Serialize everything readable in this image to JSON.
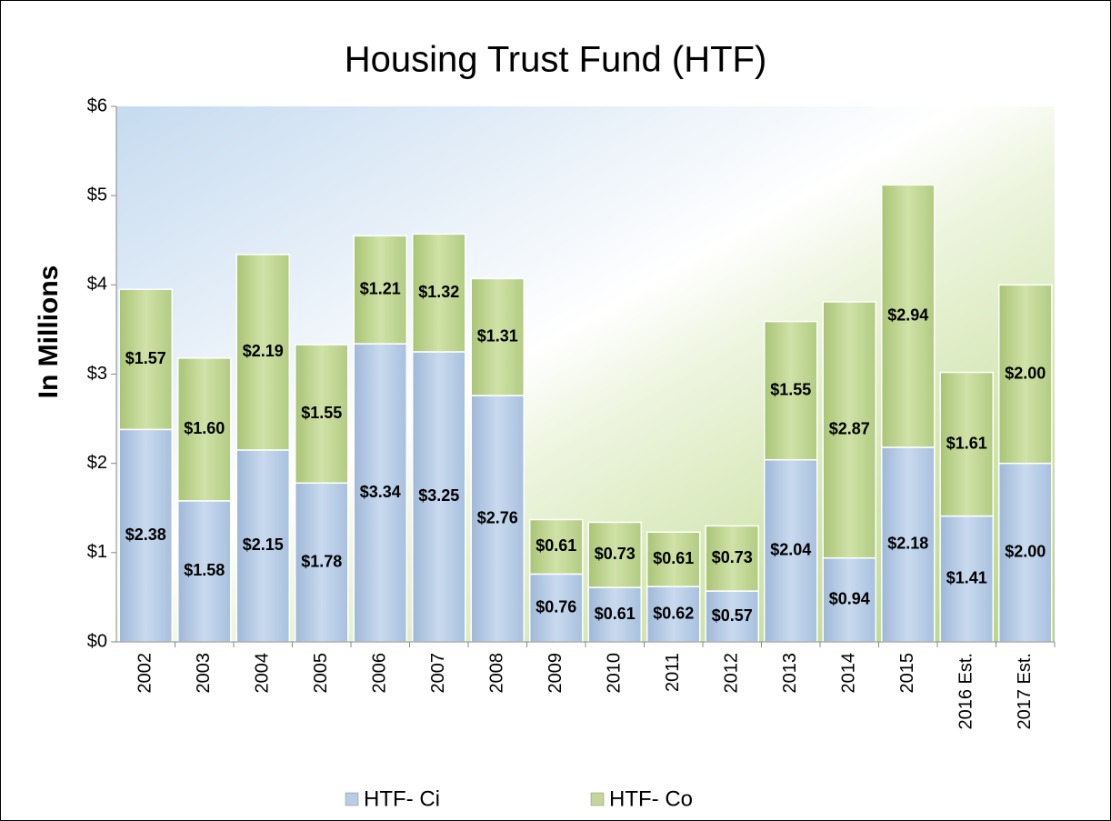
{
  "chart_data": {
    "type": "stacked_bar",
    "title": "Housing Trust Fund (HTF)",
    "y_label": "In Millions",
    "categories": [
      "2002",
      "2003",
      "2004",
      "2005",
      "2006",
      "2007",
      "2008",
      "2009",
      "2010",
      "2011",
      "2012",
      "2013",
      "2014",
      "2015",
      "2016 Est.",
      "2017 Est."
    ],
    "series": [
      {
        "name": "HTF- Ci",
        "color": "#b8cce4",
        "values": [
          2.38,
          1.58,
          2.15,
          1.78,
          3.34,
          3.25,
          2.76,
          0.76,
          0.61,
          0.62,
          0.57,
          2.04,
          0.94,
          2.18,
          1.41,
          2.0
        ],
        "value_labels": [
          "$2.38",
          "$1.58",
          "$2.15",
          "$1.78",
          "$3.34",
          "$3.25",
          "$2.76",
          "$0.76",
          "$0.61",
          "$0.62",
          "$0.57",
          "$2.04",
          "$0.94",
          "$2.18",
          "$1.41",
          "$2.00"
        ]
      },
      {
        "name": "HTF- Co",
        "color": "#c3d69b",
        "values": [
          1.57,
          1.6,
          2.19,
          1.55,
          1.21,
          1.32,
          1.31,
          0.61,
          0.73,
          0.61,
          0.73,
          1.55,
          2.87,
          2.94,
          1.61,
          2.0
        ],
        "value_labels": [
          "$1.57",
          "$1.60",
          "$2.19",
          "$1.55",
          "$1.21",
          "$1.32",
          "$1.31",
          "$0.61",
          "$0.73",
          "$0.61",
          "$0.73",
          "$1.55",
          "$2.87",
          "$2.94",
          "$1.61",
          "$2.00"
        ]
      }
    ],
    "ylim": [
      0,
      6
    ],
    "yticks": [
      {
        "value": 0,
        "label": "$0"
      },
      {
        "value": 1,
        "label": "$1"
      },
      {
        "value": 2,
        "label": "$2"
      },
      {
        "value": 3,
        "label": "$3"
      },
      {
        "value": 4,
        "label": "$4"
      },
      {
        "value": 5,
        "label": "$5"
      },
      {
        "value": 6,
        "label": "$6"
      }
    ],
    "legend": "bottom"
  }
}
